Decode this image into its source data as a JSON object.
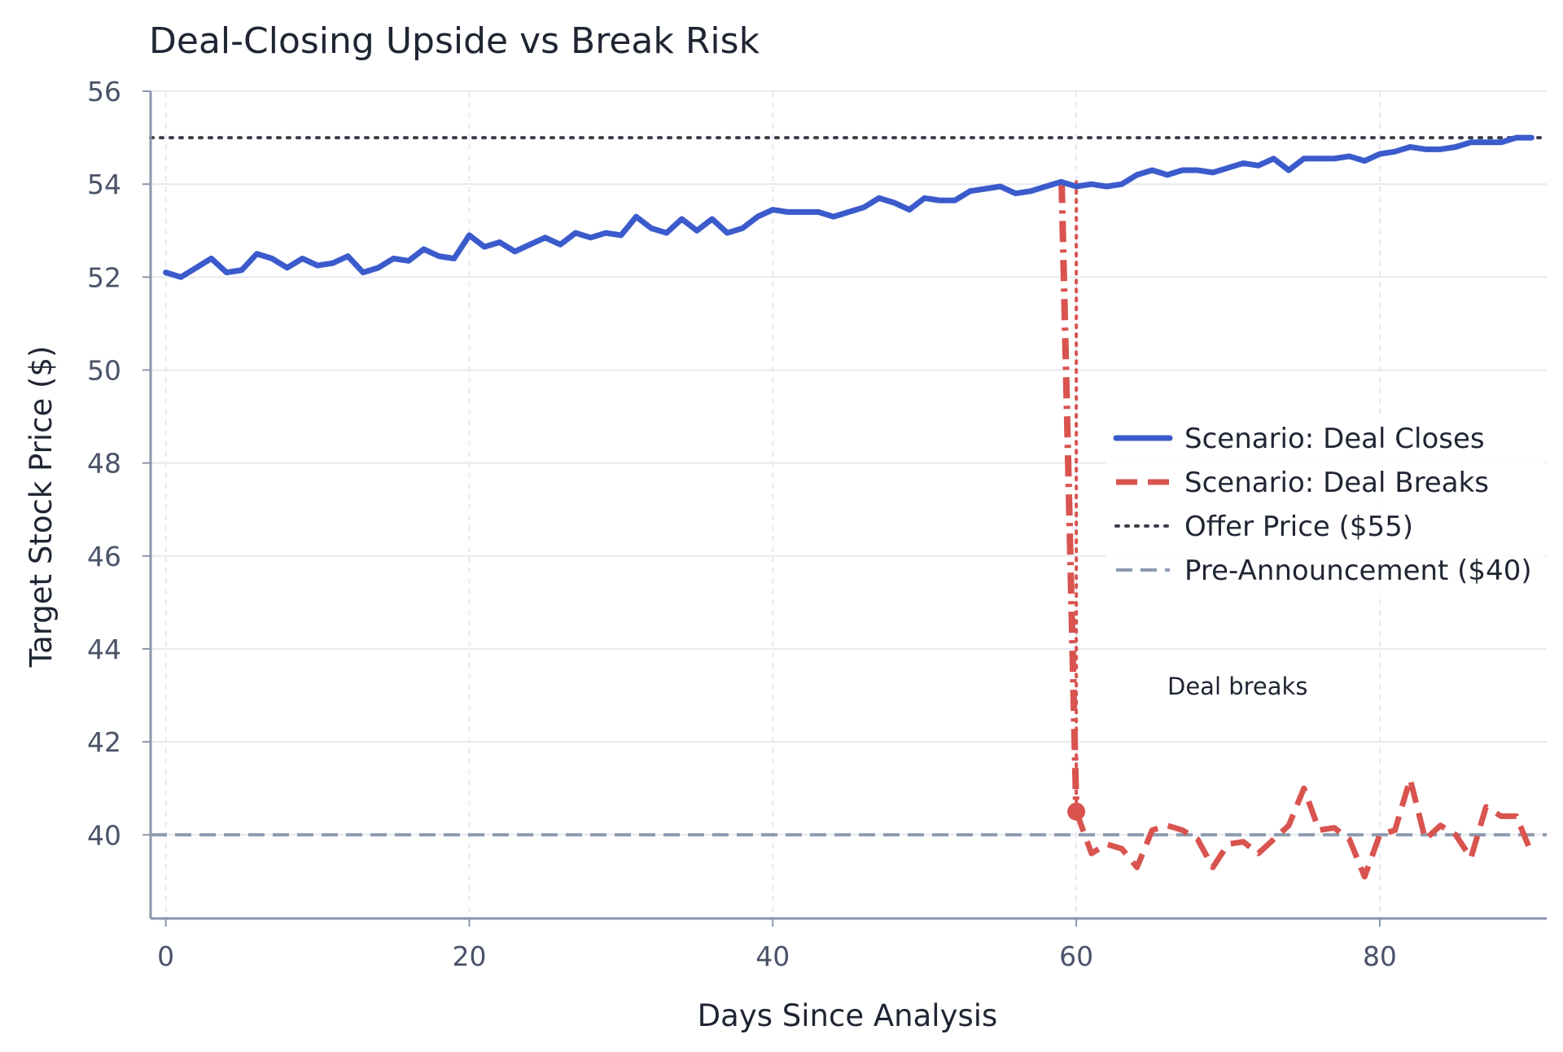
{
  "chart_data": {
    "type": "line",
    "title": "Deal-Closing Upside vs Break Risk",
    "xlabel": "Days Since Analysis",
    "ylabel": "Target Stock Price ($)",
    "xlim": [
      -1,
      91
    ],
    "ylim": [
      38.2,
      56
    ],
    "xticks": [
      0,
      20,
      40,
      60,
      80
    ],
    "yticks": [
      40,
      42,
      44,
      46,
      48,
      50,
      52,
      54,
      56
    ],
    "grid": true,
    "legend_position": "center-right",
    "colors": {
      "deal_closes": "#3b5bcc",
      "deal_breaks": "#d9534f",
      "offer_price": "#3a3f4b",
      "pre_announcement": "#8c9ab0"
    },
    "series": [
      {
        "name": "Scenario: Deal Closes",
        "style": "solid",
        "x": [
          0,
          1,
          2,
          3,
          4,
          5,
          6,
          7,
          8,
          9,
          10,
          11,
          12,
          13,
          14,
          15,
          16,
          17,
          18,
          19,
          20,
          21,
          22,
          23,
          24,
          25,
          26,
          27,
          28,
          29,
          30,
          31,
          32,
          33,
          34,
          35,
          36,
          37,
          38,
          39,
          40,
          41,
          42,
          43,
          44,
          45,
          46,
          47,
          48,
          49,
          50,
          51,
          52,
          53,
          54,
          55,
          56,
          57,
          58,
          59,
          60,
          61,
          62,
          63,
          64,
          65,
          66,
          67,
          68,
          69,
          70,
          71,
          72,
          73,
          74,
          75,
          76,
          77,
          78,
          79,
          80,
          81,
          82,
          83,
          84,
          85,
          86,
          87,
          88,
          89,
          90
        ],
        "y": [
          52.1,
          52.0,
          52.2,
          52.4,
          52.1,
          52.15,
          52.5,
          52.4,
          52.2,
          52.4,
          52.25,
          52.3,
          52.45,
          52.1,
          52.2,
          52.4,
          52.35,
          52.6,
          52.45,
          52.4,
          52.9,
          52.65,
          52.75,
          52.55,
          52.7,
          52.85,
          52.7,
          52.95,
          52.85,
          52.95,
          52.9,
          53.3,
          53.05,
          52.95,
          53.25,
          53.0,
          53.25,
          52.95,
          53.05,
          53.3,
          53.45,
          53.4,
          53.4,
          53.4,
          53.3,
          53.4,
          53.5,
          53.7,
          53.6,
          53.45,
          53.7,
          53.65,
          53.65,
          53.85,
          53.9,
          53.95,
          53.8,
          53.85,
          53.95,
          54.05,
          53.95,
          54.0,
          53.95,
          54.0,
          54.2,
          54.3,
          54.2,
          54.3,
          54.3,
          54.25,
          54.35,
          54.45,
          54.4,
          54.55,
          54.3,
          54.55,
          54.55,
          54.55,
          54.6,
          54.5,
          54.65,
          54.7,
          54.8,
          54.75,
          54.75,
          54.8,
          54.9,
          54.9,
          54.9,
          55.0,
          55.0
        ]
      },
      {
        "name": "Scenario: Deal Breaks",
        "style": "dashed",
        "x": [
          60,
          61,
          62,
          63,
          64,
          65,
          66,
          67,
          68,
          69,
          70,
          71,
          72,
          73,
          74,
          75,
          76,
          77,
          78,
          79,
          80,
          81,
          82,
          83,
          84,
          85,
          86,
          87,
          88,
          89,
          90
        ],
        "y": [
          40.5,
          39.6,
          39.8,
          39.7,
          39.3,
          40.1,
          40.2,
          40.1,
          39.9,
          39.3,
          39.8,
          39.85,
          39.6,
          39.9,
          40.2,
          41.0,
          40.1,
          40.15,
          39.9,
          39.1,
          40.0,
          40.1,
          41.2,
          39.9,
          40.2,
          40.0,
          39.5,
          40.6,
          40.4,
          40.4,
          39.6
        ]
      }
    ],
    "break_event": {
      "x": 60,
      "y_from": 54.05,
      "y_to": 40.5,
      "label": "Deal breaks"
    },
    "reference_lines": [
      {
        "name": "Offer Price ($55)",
        "y": 55,
        "style": "dotted"
      },
      {
        "name": "Pre-Announcement ($40)",
        "y": 40,
        "style": "dashed"
      }
    ]
  }
}
